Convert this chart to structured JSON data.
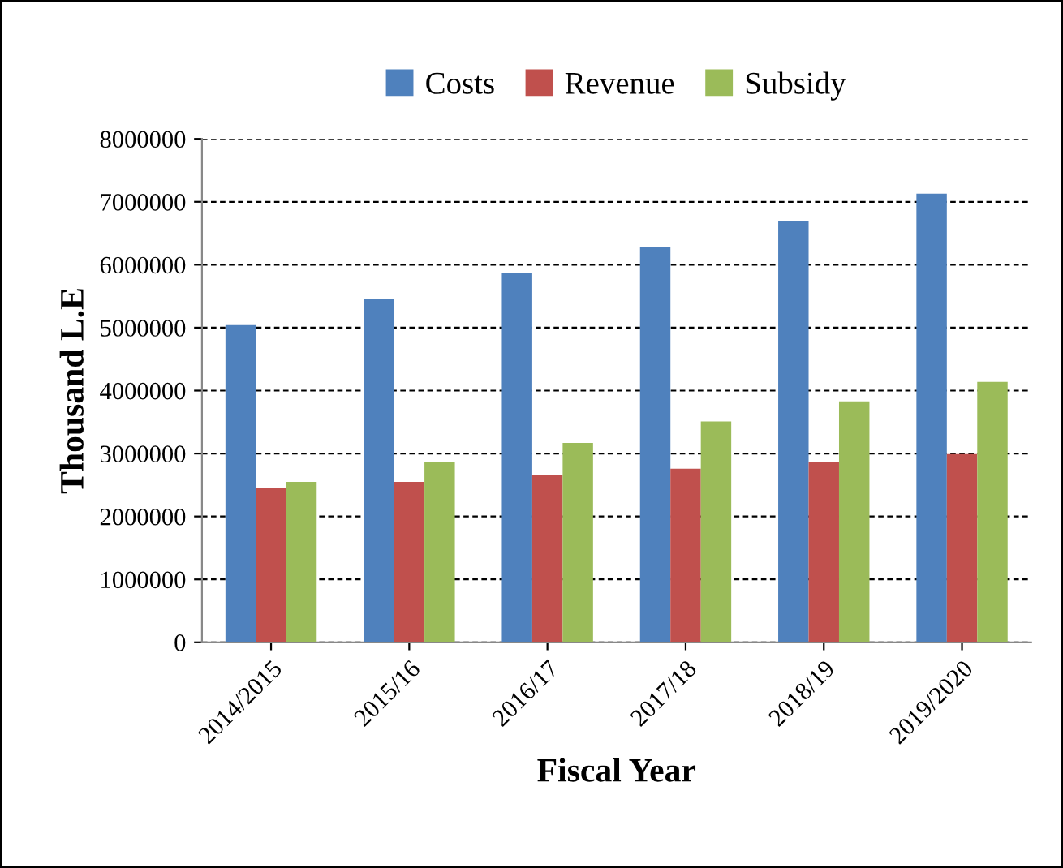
{
  "chart_data": {
    "type": "bar",
    "xlabel": "Fiscal Year",
    "ylabel": "Thousand L.E",
    "categories": [
      "2014/2015",
      "2015/16",
      "2016/17",
      "2017/18",
      "2018/19",
      "2019/2020"
    ],
    "series": [
      {
        "name": "Costs",
        "color": "#4f81bd",
        "values": [
          5040000,
          5450000,
          5870000,
          6280000,
          6690000,
          7130000
        ]
      },
      {
        "name": "Revenue",
        "color": "#c0504d",
        "values": [
          2450000,
          2550000,
          2660000,
          2760000,
          2860000,
          2990000
        ]
      },
      {
        "name": "Subsidy",
        "color": "#9bbb59",
        "values": [
          2550000,
          2860000,
          3170000,
          3510000,
          3830000,
          4140000
        ]
      }
    ],
    "ylim": [
      0,
      8000000
    ],
    "yticks": [
      0,
      1000000,
      2000000,
      3000000,
      4000000,
      5000000,
      6000000,
      7000000,
      8000000
    ],
    "grid": "y",
    "legend": "top"
  }
}
